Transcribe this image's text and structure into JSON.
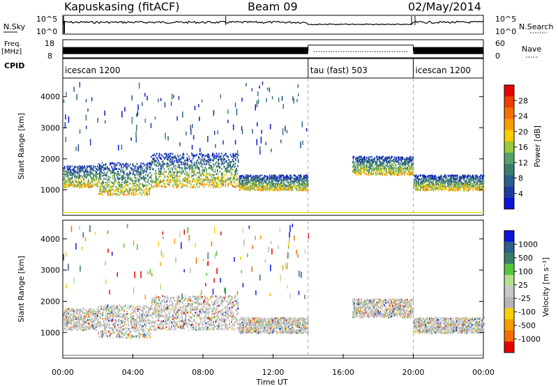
{
  "header": {
    "station": "Kapuskasing (fitACF)",
    "beam": "Beam 09",
    "date": "02/May/2014"
  },
  "chart_data": [
    {
      "type": "line",
      "name": "N.Sky",
      "left_label": "N.Sky",
      "right_label": "N.Search",
      "left_ticks": [
        "10^5",
        "10^0"
      ],
      "right_ticks": [
        "10^5",
        "10^0"
      ],
      "note": "Noise sky level stays near 10^3 all day with brief spikes near 00:00, 09:00 and 20:00"
    },
    {
      "type": "line",
      "name": "Freq",
      "left_label_top": "Freq.",
      "left_label_unit": "[MHz]",
      "right_label": "Nave",
      "left_ticks": [
        "18",
        "8"
      ],
      "right_ticks": [
        "60",
        "0"
      ],
      "segments": [
        {
          "start": "00:00",
          "end": "14:00",
          "freq_mhz": 12
        },
        {
          "start": "14:00",
          "end": "20:00",
          "freq_mhz": 15
        },
        {
          "start": "20:00",
          "end": "24:00",
          "freq_mhz": 12
        }
      ]
    },
    {
      "type": "table",
      "name": "CPID",
      "label": "CPID",
      "segments": [
        {
          "start": "00:00",
          "end": "14:00",
          "label": "icescan 1200"
        },
        {
          "start": "14:00",
          "end": "20:00",
          "label": "tau (fast) 503"
        },
        {
          "start": "20:00",
          "end": "24:00",
          "label": "icescan 1200"
        }
      ]
    },
    {
      "type": "heatmap",
      "parameter": "power",
      "ylabel": "Slant Range [km]",
      "yticks": [
        1000,
        2000,
        3000,
        4000
      ],
      "ylim": [
        180,
        4600
      ],
      "colorbar": {
        "label": "Power [dB]",
        "ticks": [
          "28",
          "24",
          "20",
          "16",
          "12",
          "8",
          "4"
        ],
        "colors": [
          "#e80000",
          "#f03c00",
          "#f56e00",
          "#fa9b00",
          "#ffcc00",
          "#9bc83c",
          "#55a064",
          "#3a7d6e",
          "#2c5f8c",
          "#1e3ca0",
          "#0a14dc"
        ]
      },
      "echo_bands": [
        {
          "start_h": 0.0,
          "end_h": 2.0,
          "range_low_km": 1100,
          "range_high_km": 1800
        },
        {
          "start_h": 2.0,
          "end_h": 5.0,
          "range_low_km": 850,
          "range_high_km": 1900
        },
        {
          "start_h": 5.0,
          "end_h": 10.0,
          "range_low_km": 1100,
          "range_high_km": 2200
        },
        {
          "start_h": 10.0,
          "end_h": 14.0,
          "range_low_km": 1000,
          "range_high_km": 1500
        },
        {
          "start_h": 16.5,
          "end_h": 20.0,
          "range_low_km": 1500,
          "range_high_km": 2100
        },
        {
          "start_h": 20.0,
          "end_h": 24.0,
          "range_low_km": 1000,
          "range_high_km": 1500
        }
      ]
    },
    {
      "type": "heatmap",
      "parameter": "velocity",
      "ylabel": "Slant Range [km]",
      "yticks": [
        1000,
        2000,
        3000,
        4000
      ],
      "ylim": [
        180,
        4600
      ],
      "xlabel": "Time UT",
      "xticks": [
        "00:00",
        "04:00",
        "08:00",
        "12:00",
        "16:00",
        "20:00",
        "00:00"
      ],
      "colorbar": {
        "label": "Velocity [m s⁻¹]",
        "ticks": [
          "1000",
          "500",
          "100",
          "25",
          "-25",
          "-100",
          "-500",
          "-1000"
        ],
        "colors": [
          "#0a14dc",
          "#2c5f8c",
          "#3a7d6e",
          "#55c83c",
          "#b4e08c",
          "#c8c8c8",
          "#b4b4b4",
          "#fad200",
          "#fa9b00",
          "#f56e00",
          "#e80000"
        ]
      }
    }
  ]
}
